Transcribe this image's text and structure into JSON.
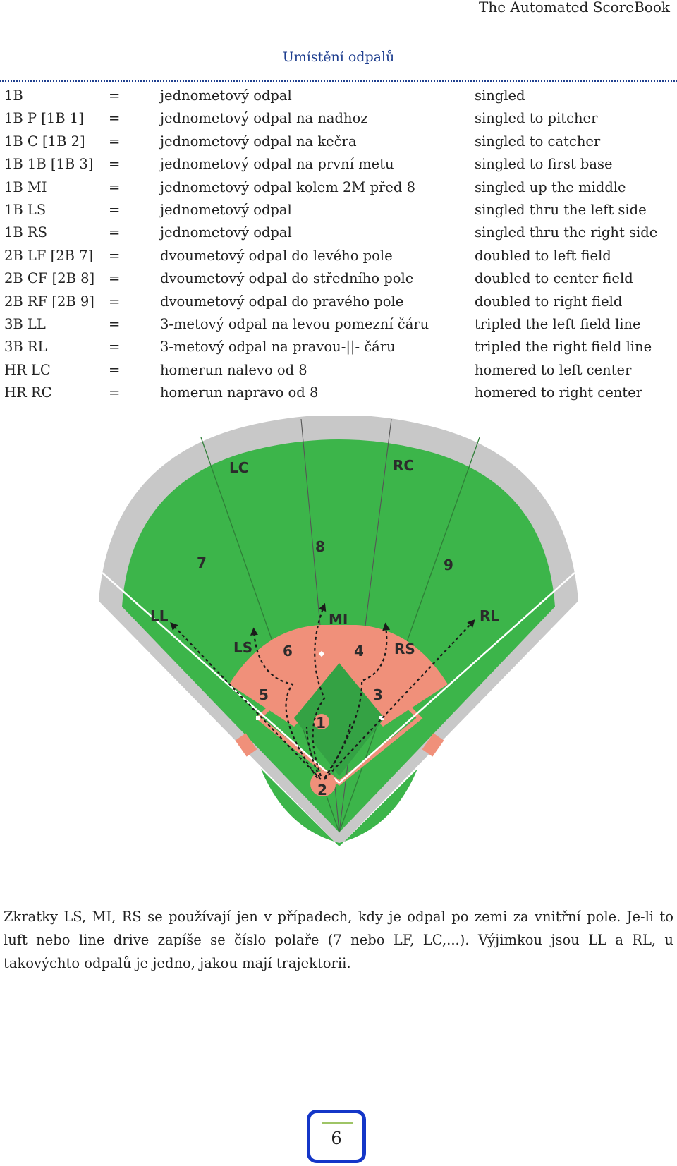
{
  "header": {
    "text": "The Automated ScoreBook"
  },
  "section": {
    "title": "Umístění odpalů"
  },
  "rows": [
    {
      "code": "1B",
      "eq": "=",
      "cz": "jednometový odpal",
      "en": "singled"
    },
    {
      "code": "1B P [1B 1]",
      "eq": "=",
      "cz": "jednometový odpal na nadhoz",
      "en": "singled to pitcher"
    },
    {
      "code": "1B C [1B 2]",
      "eq": "=",
      "cz": "jednometový odpal na kečra",
      "en": "singled to catcher"
    },
    {
      "code": "1B 1B [1B 3]",
      "eq": "=",
      "cz": "jednometový odpal na první metu",
      "en": "singled to first base"
    },
    {
      "code": "1B MI",
      "eq": "=",
      "cz": "jednometový odpal kolem 2M před 8",
      "en": "singled up the middle"
    },
    {
      "code": "1B LS",
      "eq": "=",
      "cz": "jednometový odpal",
      "en": "singled thru the left side"
    },
    {
      "code": "1B RS",
      "eq": "=",
      "cz": "jednometový odpal",
      "en": "singled thru the right side"
    },
    {
      "code": "2B LF [2B 7]",
      "eq": "=",
      "cz": "dvoumetový odpal do levého pole",
      "en": "doubled to left field"
    },
    {
      "code": "2B CF [2B 8]",
      "eq": "=",
      "cz": "dvoumetový odpal do středního pole",
      "en": "doubled to center field"
    },
    {
      "code": "2B RF [2B 9]",
      "eq": "=",
      "cz": "dvoumetový odpal do pravého pole",
      "en": "doubled to right field"
    },
    {
      "code": "3B LL",
      "eq": "=",
      "cz": "3-metový odpal na levou pomezní čáru",
      "en": "tripled the left field line"
    },
    {
      "code": "3B RL",
      "eq": "=",
      "cz": "3-metový odpal na pravou-||- čáru",
      "en": "tripled the right field line"
    },
    {
      "code": "HR LC",
      "eq": "=",
      "cz": "homerun nalevo od 8",
      "en": "homered to left center"
    },
    {
      "code": "HR RC",
      "eq": "=",
      "cz": "homerun napravo od 8",
      "en": "homered to right center"
    }
  ],
  "diagram": {
    "labels": {
      "lc": "LC",
      "rc": "RC",
      "n7": "7",
      "n8": "8",
      "n9": "9",
      "ll": "LL",
      "mi": "MI",
      "rl": "RL",
      "ls": "LS",
      "n6": "6",
      "n4": "4",
      "rs": "RS",
      "n5": "5",
      "n3": "3",
      "n1": "1",
      "n2": "2"
    },
    "colors": {
      "grass": "#3cb54a",
      "infield_grass": "#34a244",
      "dirt": "#f0907a",
      "warning_track": "#c8c8c8"
    }
  },
  "note": {
    "text": "Zkratky LS, MI, RS se používají jen v případech, kdy je odpal po zemi za vnitřní pole. Je-li to luft nebo line drive zapíše se číslo polaře (7 nebo LF, LC,...). Výjimkou jsou LL a RL, u takovýchto odpalů je jedno, jakou mají trajektorii."
  },
  "footer": {
    "page_number": "6"
  }
}
